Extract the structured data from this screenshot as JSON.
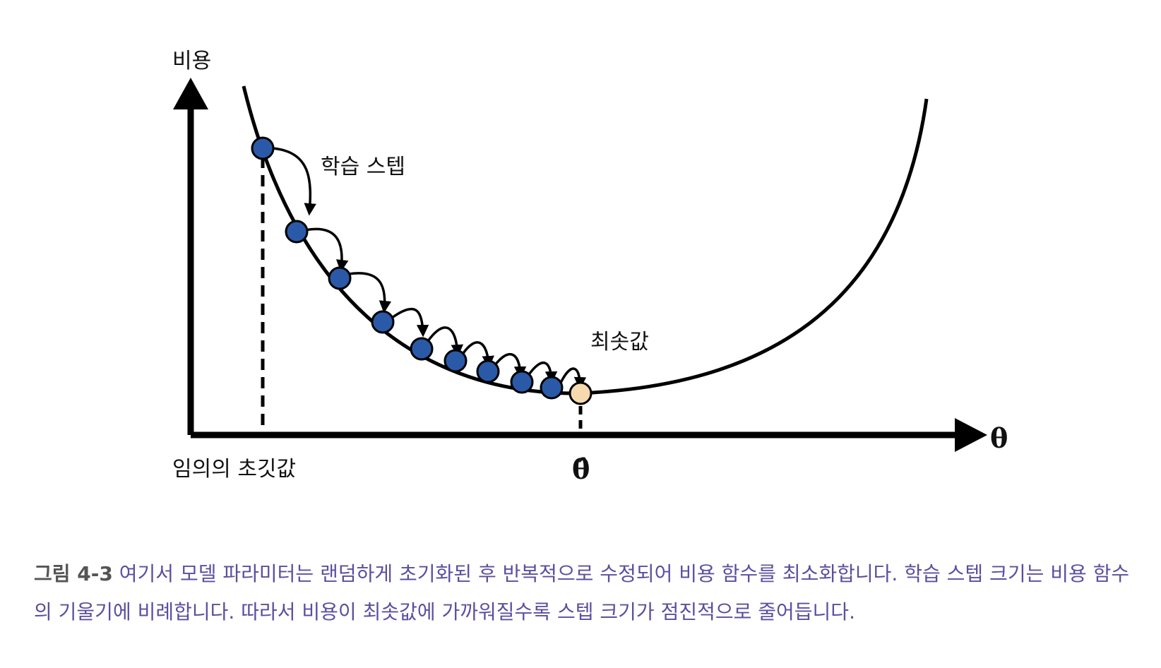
{
  "diagram": {
    "y_axis_label": "비용",
    "x_axis_label": "θ",
    "optimum_label": "θ̂",
    "step_label": "학습 스텝",
    "minimum_label": "최솟값",
    "initial_label": "임의의 초깃값",
    "colors": {
      "curve": "#000000",
      "step_point": "#2a5aa7",
      "minimum_point": "#f6d9ae"
    }
  },
  "caption": {
    "label": "그림 4-3",
    "text": "여기서 모델 파라미터는 랜덤하게 초기화된 후 반복적으로 수정되어 비용 함수를 최소화합니다. 학습 스텝 크기는 비용 함수의 기울기에 비례합니다. 따라서 비용이 최솟값에 가까워질수록 스텝 크기가 점진적으로 줄어듭니다."
  }
}
